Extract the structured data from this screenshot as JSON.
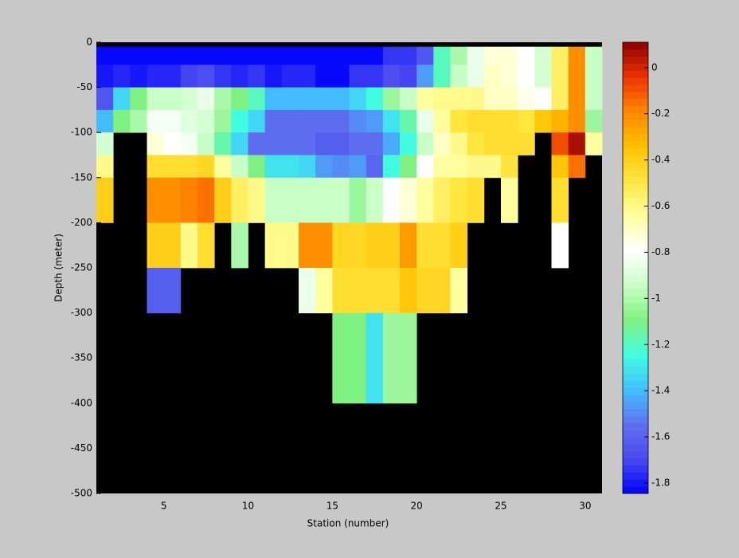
{
  "chart_data": {
    "type": "heatmap",
    "xlabel": "Station (number)",
    "ylabel": "Depth (meter)",
    "x": [
      1,
      2,
      3,
      4,
      5,
      6,
      7,
      8,
      9,
      10,
      11,
      12,
      13,
      14,
      15,
      16,
      17,
      18,
      19,
      20,
      21,
      22,
      23,
      24,
      25,
      26,
      27,
      28,
      29,
      30,
      31
    ],
    "y": [
      0,
      -5,
      -25,
      -50,
      -75,
      -100,
      -125,
      -150,
      -200,
      -250,
      -300,
      -400,
      -500
    ],
    "z": [
      [
        null,
        null,
        null,
        null,
        null,
        null,
        null,
        null,
        null,
        null,
        null,
        null,
        null,
        null,
        null,
        null,
        null,
        null,
        null,
        null,
        null,
        null,
        null,
        null,
        null,
        null,
        null,
        null,
        null,
        null
      ],
      [
        -1.83,
        -1.83,
        -1.83,
        -1.83,
        -1.83,
        -1.83,
        -1.83,
        -1.83,
        -1.83,
        -1.83,
        -1.83,
        -1.83,
        -1.83,
        -1.83,
        -1.83,
        -1.83,
        -1.83,
        -1.75,
        -1.75,
        -1.65,
        -1.2,
        -1.0,
        -0.85,
        -0.72,
        -0.72,
        -0.78,
        -0.92,
        -0.55,
        -0.2,
        -0.95
      ],
      [
        -1.8,
        -1.78,
        -1.8,
        -1.78,
        -1.78,
        -1.72,
        -1.68,
        -1.75,
        -1.78,
        -1.75,
        -1.8,
        -1.78,
        -1.78,
        -1.82,
        -1.82,
        -1.75,
        -1.75,
        -1.68,
        -1.72,
        -1.45,
        -1.2,
        -0.95,
        -0.85,
        -0.7,
        -0.72,
        -0.78,
        -0.92,
        -0.55,
        -0.22,
        -0.95
      ],
      [
        -1.65,
        -1.35,
        -1.1,
        -0.95,
        -0.95,
        -0.9,
        -0.85,
        -1.0,
        -1.1,
        -1.2,
        -1.4,
        -1.4,
        -1.4,
        -1.4,
        -1.4,
        -1.35,
        -1.25,
        -1.05,
        -0.95,
        -0.65,
        -0.6,
        -0.6,
        -0.6,
        -0.7,
        -0.7,
        -0.75,
        -0.8,
        -0.55,
        -0.2,
        -0.95
      ],
      [
        -1.4,
        -1.1,
        -1.0,
        -0.82,
        -0.82,
        -0.88,
        -0.9,
        -1.05,
        -1.25,
        -1.35,
        -1.55,
        -1.55,
        -1.55,
        -1.55,
        -1.55,
        -1.5,
        -1.45,
        -1.3,
        -1.15,
        -0.85,
        -0.65,
        -0.5,
        -0.45,
        -0.45,
        -0.45,
        -0.5,
        -0.35,
        -0.3,
        -0.2,
        -1.05
      ],
      [
        -0.9,
        null,
        null,
        -0.72,
        -0.8,
        -0.82,
        -0.95,
        -1.15,
        -1.35,
        -1.55,
        -1.55,
        -1.55,
        -1.55,
        -1.62,
        -1.62,
        -1.55,
        -1.55,
        -1.42,
        -1.25,
        -0.95,
        -0.7,
        -0.6,
        -0.5,
        -0.45,
        -0.45,
        -0.45,
        null,
        -0.1,
        0.05,
        -0.65
      ],
      [
        -0.6,
        null,
        null,
        -0.45,
        -0.45,
        -0.45,
        -0.42,
        -0.65,
        -0.95,
        -1.1,
        -1.3,
        -1.3,
        -1.35,
        -1.45,
        -1.5,
        -1.45,
        -1.6,
        -1.25,
        -1.1,
        -0.8,
        -0.65,
        -0.65,
        -0.6,
        -0.6,
        -0.5,
        null,
        null,
        -0.35,
        -0.15,
        null
      ],
      [
        -0.4,
        null,
        null,
        -0.2,
        -0.2,
        -0.18,
        -0.15,
        -0.4,
        -0.55,
        -0.6,
        -0.95,
        -0.95,
        -0.95,
        -0.95,
        -0.95,
        -1.05,
        -0.95,
        -0.8,
        -0.72,
        -0.65,
        -0.55,
        -0.5,
        -0.45,
        null,
        -0.65,
        null,
        null,
        -0.45,
        null,
        null
      ],
      [
        null,
        null,
        null,
        -0.4,
        -0.4,
        -0.6,
        -0.45,
        null,
        -1.0,
        null,
        -0.6,
        -0.6,
        -0.2,
        -0.2,
        -0.42,
        -0.42,
        -0.38,
        -0.38,
        -0.25,
        -0.45,
        -0.45,
        -0.38,
        null,
        null,
        null,
        null,
        null,
        -0.8,
        null,
        null
      ],
      [
        null,
        null,
        null,
        -1.62,
        -1.62,
        null,
        null,
        null,
        null,
        null,
        null,
        null,
        -0.85,
        -0.65,
        -0.45,
        -0.45,
        -0.45,
        -0.45,
        -0.35,
        -0.42,
        -0.42,
        -0.65,
        null,
        null,
        null,
        null,
        null,
        null,
        null,
        null
      ],
      [
        null,
        null,
        null,
        null,
        null,
        null,
        null,
        null,
        null,
        null,
        null,
        null,
        null,
        null,
        -1.1,
        -1.1,
        -1.3,
        -1.05,
        -1.05,
        null,
        null,
        null,
        null,
        null,
        null,
        null,
        null,
        null,
        null,
        null
      ],
      [
        null,
        null,
        null,
        null,
        null,
        null,
        null,
        null,
        null,
        null,
        null,
        null,
        null,
        null,
        null,
        null,
        null,
        null,
        null,
        null,
        null,
        null,
        null,
        null,
        null,
        null,
        null,
        null,
        null,
        null
      ]
    ],
    "xlim": [
      1,
      31
    ],
    "xticks": [
      5,
      10,
      15,
      20,
      25,
      30
    ],
    "ylim": [
      -500,
      0
    ],
    "yticks": [
      0,
      -50,
      -100,
      -150,
      -200,
      -250,
      -300,
      -350,
      -400,
      -450,
      -500
    ],
    "clim": [
      -1.845,
      0.11
    ],
    "cticks": [
      0,
      -0.2,
      -0.4,
      -0.6,
      -0.8,
      -1,
      -1.2,
      -1.4,
      -1.6,
      -1.8
    ],
    "missing_color": "#000000",
    "colormap": [
      "#0000ff",
      "#4a4af0",
      "#6070f0",
      "#40c0ff",
      "#40ffe0",
      "#80f080",
      "#c8ffc8",
      "#ffffff",
      "#ffffa0",
      "#ffe840",
      "#ffc000",
      "#ff8800",
      "#ee3300",
      "#8b0000"
    ]
  }
}
